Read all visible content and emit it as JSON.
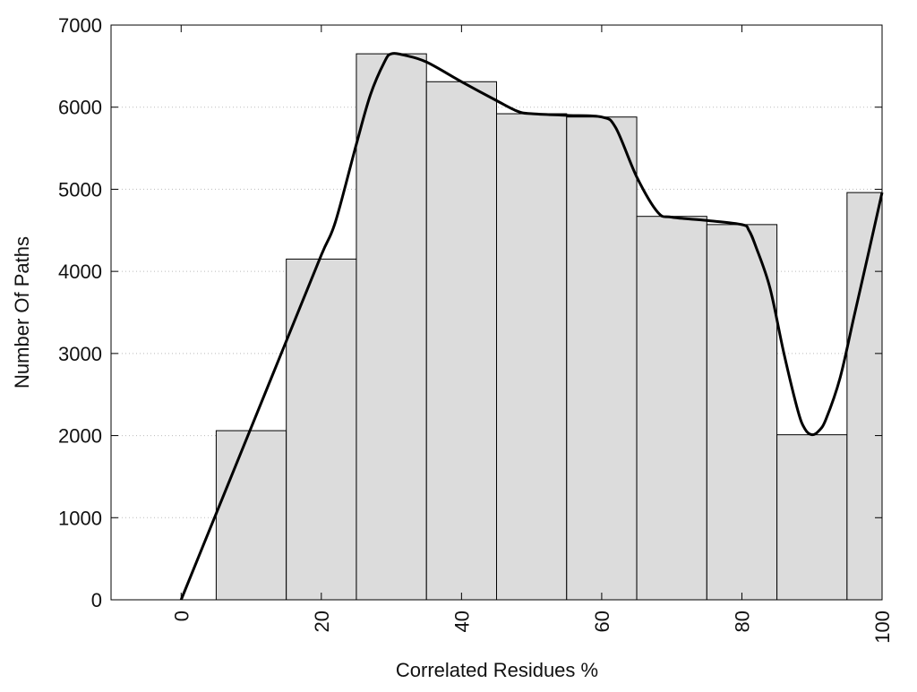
{
  "chart_data": {
    "type": "bar",
    "xlabel": "Correlated Residues %",
    "ylabel": "Number Of Paths",
    "xlim": [
      -10,
      100
    ],
    "ylim": [
      0,
      7000
    ],
    "x_ticks": [
      0,
      20,
      40,
      60,
      80,
      100
    ],
    "y_ticks": [
      0,
      1000,
      2000,
      3000,
      4000,
      5000,
      6000,
      7000
    ],
    "grid": "horizontal dotted",
    "legend": "none",
    "bin_width": 10,
    "bars": [
      {
        "x": 10,
        "value": 2060
      },
      {
        "x": 20,
        "value": 4150
      },
      {
        "x": 30,
        "value": 6650
      },
      {
        "x": 40,
        "value": 6310
      },
      {
        "x": 50,
        "value": 5920
      },
      {
        "x": 60,
        "value": 5880
      },
      {
        "x": 70,
        "value": 4670
      },
      {
        "x": 80,
        "value": 4570
      },
      {
        "x": 90,
        "value": 2010
      },
      {
        "x": 100,
        "value": 4960
      }
    ],
    "line": [
      {
        "x": 0,
        "y": 0
      },
      {
        "x": 5,
        "y": 1050
      },
      {
        "x": 10,
        "y": 2100
      },
      {
        "x": 15,
        "y": 3150
      },
      {
        "x": 20,
        "y": 4200
      },
      {
        "x": 22,
        "y": 4600
      },
      {
        "x": 25,
        "y": 5550
      },
      {
        "x": 27,
        "y": 6150
      },
      {
        "x": 29,
        "y": 6550
      },
      {
        "x": 30,
        "y": 6650
      },
      {
        "x": 32,
        "y": 6630
      },
      {
        "x": 35,
        "y": 6550
      },
      {
        "x": 40,
        "y": 6310
      },
      {
        "x": 45,
        "y": 6080
      },
      {
        "x": 48,
        "y": 5950
      },
      {
        "x": 50,
        "y": 5920
      },
      {
        "x": 55,
        "y": 5900
      },
      {
        "x": 60,
        "y": 5880
      },
      {
        "x": 62,
        "y": 5750
      },
      {
        "x": 65,
        "y": 5150
      },
      {
        "x": 68,
        "y": 4720
      },
      {
        "x": 70,
        "y": 4660
      },
      {
        "x": 75,
        "y": 4620
      },
      {
        "x": 80,
        "y": 4570
      },
      {
        "x": 81,
        "y": 4500
      },
      {
        "x": 82,
        "y": 4300
      },
      {
        "x": 84,
        "y": 3800
      },
      {
        "x": 86,
        "y": 3000
      },
      {
        "x": 88,
        "y": 2300
      },
      {
        "x": 89,
        "y": 2080
      },
      {
        "x": 90,
        "y": 2010
      },
      {
        "x": 91,
        "y": 2060
      },
      {
        "x": 92,
        "y": 2200
      },
      {
        "x": 94,
        "y": 2700
      },
      {
        "x": 96,
        "y": 3450
      },
      {
        "x": 98,
        "y": 4200
      },
      {
        "x": 100,
        "y": 4960
      }
    ]
  }
}
